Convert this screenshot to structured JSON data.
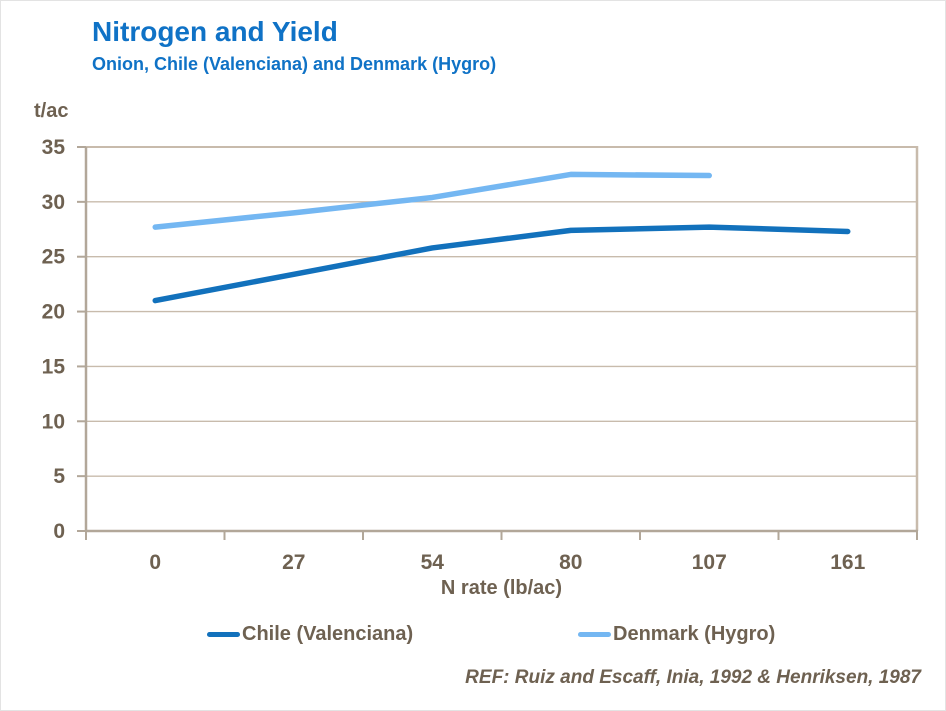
{
  "header": {
    "title": "Nitrogen and Yield",
    "subtitle": "Onion, Chile (Valenciana) and Denmark (Hygro)"
  },
  "chart_data": {
    "type": "line",
    "title": "Nitrogen and Yield",
    "subtitle": "Onion, Chile (Valenciana) and Denmark (Hygro)",
    "categories": [
      "0",
      "27",
      "54",
      "80",
      "107",
      "161"
    ],
    "series": [
      {
        "name": "Chile (Valenciana)",
        "color": "#1271BC",
        "values": [
          21.0,
          23.4,
          25.8,
          27.4,
          27.7,
          27.3
        ]
      },
      {
        "name": "Denmark (Hygro)",
        "color": "#74B7F2",
        "values": [
          27.7,
          29.0,
          30.4,
          32.5,
          32.4,
          null
        ]
      }
    ],
    "xlabel": "N rate (lb/ac)",
    "ylabel": "t/ac",
    "ylim": [
      0,
      35
    ],
    "ytick_step": 5,
    "yticks": [
      "0",
      "5",
      "10",
      "15",
      "20",
      "25",
      "30",
      "35"
    ],
    "grid": "horizontal",
    "legend_position": "bottom"
  },
  "footer": {
    "reference": "REF: Ruiz and Escaff, Inia, 1992 & Henriksen, 1987"
  },
  "colors": {
    "title_blue": "#0F72C6",
    "chile_line": "#1271BC",
    "denmark_line": "#74B7F2",
    "axis_text_brown": "#6E6151",
    "gridline_tan": "#C8BBAC",
    "axis_line_tan": "#B2A799"
  }
}
